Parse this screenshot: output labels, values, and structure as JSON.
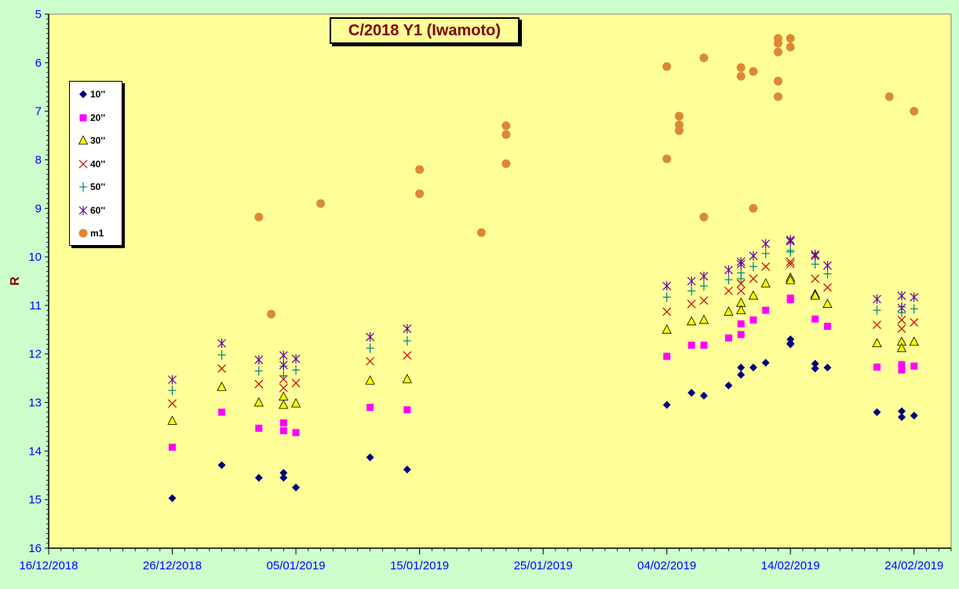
{
  "chart_data": {
    "type": "scatter",
    "title": "C/2018 Y1 (Iwamoto)",
    "xlabel": "",
    "ylabel": "R",
    "xlim": [
      "2018-12-16",
      "2019-02-27"
    ],
    "ylim": [
      16,
      5
    ],
    "y_inverted": true,
    "x_tick_labels": [
      "16/12/2018",
      "26/12/2018",
      "05/01/2019",
      "15/01/2019",
      "25/01/2019",
      "04/02/2019",
      "14/02/2019",
      "24/02/2019"
    ],
    "x_tick_dates": [
      "2018-12-16",
      "2018-12-26",
      "2019-01-05",
      "2019-01-15",
      "2019-01-25",
      "2019-02-04",
      "2019-02-14",
      "2019-02-24"
    ],
    "y_ticks": [
      5,
      6,
      7,
      8,
      9,
      10,
      11,
      12,
      13,
      14,
      15,
      16
    ],
    "grid": false,
    "legend_position": "top-left",
    "series": [
      {
        "name": "10''",
        "marker": "diamond",
        "color": "#000080",
        "points": [
          [
            "2018-12-26",
            14.97
          ],
          [
            "2018-12-30",
            14.29
          ],
          [
            "2019-01-02",
            14.55
          ],
          [
            "2019-01-04",
            14.45
          ],
          [
            "2019-01-04",
            14.55
          ],
          [
            "2019-01-05",
            14.75
          ],
          [
            "2019-01-11",
            14.13
          ],
          [
            "2019-01-14",
            14.38
          ],
          [
            "2019-02-04",
            13.05
          ],
          [
            "2019-02-06",
            12.8
          ],
          [
            "2019-02-07",
            12.86
          ],
          [
            "2019-02-09",
            12.65
          ],
          [
            "2019-02-10",
            12.28
          ],
          [
            "2019-02-10",
            12.43
          ],
          [
            "2019-02-11",
            12.28
          ],
          [
            "2019-02-12",
            12.18
          ],
          [
            "2019-02-14",
            11.7
          ],
          [
            "2019-02-14",
            11.8
          ],
          [
            "2019-02-14",
            11.78
          ],
          [
            "2019-02-16",
            12.3
          ],
          [
            "2019-02-16",
            12.2
          ],
          [
            "2019-02-17",
            12.28
          ],
          [
            "2019-02-21",
            13.2
          ],
          [
            "2019-02-23",
            13.18
          ],
          [
            "2019-02-23",
            13.3
          ],
          [
            "2019-02-24",
            13.27
          ]
        ]
      },
      {
        "name": "20''",
        "marker": "square",
        "color": "#ff00ff",
        "points": [
          [
            "2018-12-26",
            13.92
          ],
          [
            "2018-12-30",
            13.2
          ],
          [
            "2019-01-02",
            13.53
          ],
          [
            "2019-01-04",
            13.42
          ],
          [
            "2019-01-04",
            13.58
          ],
          [
            "2019-01-05",
            13.62
          ],
          [
            "2019-01-11",
            13.1
          ],
          [
            "2019-01-14",
            13.15
          ],
          [
            "2019-02-04",
            12.05
          ],
          [
            "2019-02-06",
            11.82
          ],
          [
            "2019-02-07",
            11.82
          ],
          [
            "2019-02-09",
            11.67
          ],
          [
            "2019-02-10",
            11.38
          ],
          [
            "2019-02-10",
            11.6
          ],
          [
            "2019-02-11",
            11.3
          ],
          [
            "2019-02-12",
            11.1
          ],
          [
            "2019-02-14",
            10.85
          ],
          [
            "2019-02-14",
            10.88
          ],
          [
            "2019-02-16",
            11.28
          ],
          [
            "2019-02-17",
            11.43
          ],
          [
            "2019-02-21",
            12.27
          ],
          [
            "2019-02-23",
            12.22
          ],
          [
            "2019-02-23",
            12.33
          ],
          [
            "2019-02-24",
            12.25
          ]
        ]
      },
      {
        "name": "30''",
        "marker": "triangle",
        "color": "#ffff00",
        "points": [
          [
            "2018-12-26",
            13.38
          ],
          [
            "2018-12-30",
            12.68
          ],
          [
            "2019-01-02",
            13.0
          ],
          [
            "2019-01-04",
            12.88
          ],
          [
            "2019-01-04",
            13.05
          ],
          [
            "2019-01-05",
            13.02
          ],
          [
            "2019-01-11",
            12.55
          ],
          [
            "2019-01-14",
            12.52
          ],
          [
            "2019-02-04",
            11.5
          ],
          [
            "2019-02-06",
            11.33
          ],
          [
            "2019-02-07",
            11.3
          ],
          [
            "2019-02-09",
            11.13
          ],
          [
            "2019-02-10",
            10.95
          ],
          [
            "2019-02-10",
            11.1
          ],
          [
            "2019-02-11",
            10.8
          ],
          [
            "2019-02-12",
            10.55
          ],
          [
            "2019-02-14",
            10.43
          ],
          [
            "2019-02-14",
            10.48
          ],
          [
            "2019-02-16",
            10.77
          ],
          [
            "2019-02-16",
            10.8
          ],
          [
            "2019-02-17",
            10.97
          ],
          [
            "2019-02-21",
            11.78
          ],
          [
            "2019-02-23",
            11.75
          ],
          [
            "2019-02-23",
            11.88
          ],
          [
            "2019-02-24",
            11.75
          ]
        ]
      },
      {
        "name": "40''",
        "marker": "x",
        "color": "#cc0000",
        "points": [
          [
            "2018-12-26",
            13.02
          ],
          [
            "2018-12-30",
            12.3
          ],
          [
            "2019-01-02",
            12.62
          ],
          [
            "2019-01-04",
            12.52
          ],
          [
            "2019-01-04",
            12.7
          ],
          [
            "2019-01-05",
            12.6
          ],
          [
            "2019-01-11",
            12.15
          ],
          [
            "2019-01-14",
            12.03
          ],
          [
            "2019-02-04",
            11.13
          ],
          [
            "2019-02-06",
            10.97
          ],
          [
            "2019-02-07",
            10.9
          ],
          [
            "2019-02-09",
            10.7
          ],
          [
            "2019-02-10",
            10.55
          ],
          [
            "2019-02-10",
            10.7
          ],
          [
            "2019-02-11",
            10.45
          ],
          [
            "2019-02-12",
            10.2
          ],
          [
            "2019-02-14",
            10.1
          ],
          [
            "2019-02-14",
            10.15
          ],
          [
            "2019-02-16",
            10.45
          ],
          [
            "2019-02-17",
            10.63
          ],
          [
            "2019-02-21",
            11.4
          ],
          [
            "2019-02-23",
            11.3
          ],
          [
            "2019-02-23",
            11.48
          ],
          [
            "2019-02-24",
            11.35
          ]
        ]
      },
      {
        "name": "50''",
        "marker": "plus",
        "color": "#008080",
        "points": [
          [
            "2018-12-26",
            12.75
          ],
          [
            "2018-12-30",
            12.02
          ],
          [
            "2019-01-02",
            12.35
          ],
          [
            "2019-01-04",
            12.25
          ],
          [
            "2019-01-04",
            12.45
          ],
          [
            "2019-01-05",
            12.33
          ],
          [
            "2019-01-11",
            11.88
          ],
          [
            "2019-01-14",
            11.73
          ],
          [
            "2019-02-04",
            10.83
          ],
          [
            "2019-02-06",
            10.7
          ],
          [
            "2019-02-07",
            10.6
          ],
          [
            "2019-02-09",
            10.47
          ],
          [
            "2019-02-10",
            10.33
          ],
          [
            "2019-02-10",
            10.45
          ],
          [
            "2019-02-11",
            10.2
          ],
          [
            "2019-02-12",
            9.93
          ],
          [
            "2019-02-14",
            9.87
          ],
          [
            "2019-02-14",
            9.9
          ],
          [
            "2019-02-16",
            10.15
          ],
          [
            "2019-02-17",
            10.35
          ],
          [
            "2019-02-21",
            11.1
          ],
          [
            "2019-02-23",
            11.03
          ],
          [
            "2019-02-23",
            11.15
          ],
          [
            "2019-02-24",
            11.07
          ]
        ]
      },
      {
        "name": "60''",
        "marker": "star",
        "color": "#660099",
        "points": [
          [
            "2018-12-26",
            12.53
          ],
          [
            "2018-12-30",
            11.78
          ],
          [
            "2019-01-02",
            12.12
          ],
          [
            "2019-01-04",
            12.03
          ],
          [
            "2019-01-04",
            12.23
          ],
          [
            "2019-01-05",
            12.1
          ],
          [
            "2019-01-11",
            11.65
          ],
          [
            "2019-01-14",
            11.48
          ],
          [
            "2019-02-04",
            10.6
          ],
          [
            "2019-02-06",
            10.5
          ],
          [
            "2019-02-07",
            10.4
          ],
          [
            "2019-02-09",
            10.27
          ],
          [
            "2019-02-10",
            10.1
          ],
          [
            "2019-02-10",
            10.15
          ],
          [
            "2019-02-11",
            9.98
          ],
          [
            "2019-02-12",
            9.73
          ],
          [
            "2019-02-14",
            9.65
          ],
          [
            "2019-02-14",
            9.68
          ],
          [
            "2019-02-16",
            9.95
          ],
          [
            "2019-02-16",
            9.98
          ],
          [
            "2019-02-17",
            10.18
          ],
          [
            "2019-02-21",
            10.87
          ],
          [
            "2019-02-23",
            10.8
          ],
          [
            "2019-02-23",
            11.05
          ],
          [
            "2019-02-24",
            10.83
          ]
        ]
      },
      {
        "name": "m1",
        "marker": "circle",
        "color": "#dd8833",
        "points": [
          [
            "2019-01-02",
            9.18
          ],
          [
            "2019-01-03",
            11.18
          ],
          [
            "2019-01-07",
            8.9
          ],
          [
            "2019-01-15",
            8.2
          ],
          [
            "2019-01-15",
            8.7
          ],
          [
            "2019-01-20",
            9.5
          ],
          [
            "2019-01-22",
            7.3
          ],
          [
            "2019-01-22",
            7.48
          ],
          [
            "2019-01-22",
            8.08
          ],
          [
            "2019-02-04",
            6.08
          ],
          [
            "2019-02-04",
            7.98
          ],
          [
            "2019-02-05",
            7.1
          ],
          [
            "2019-02-05",
            7.28
          ],
          [
            "2019-02-05",
            7.4
          ],
          [
            "2019-02-07",
            5.9
          ],
          [
            "2019-02-07",
            9.18
          ],
          [
            "2019-02-10",
            6.1
          ],
          [
            "2019-02-10",
            6.28
          ],
          [
            "2019-02-11",
            6.18
          ],
          [
            "2019-02-11",
            9.0
          ],
          [
            "2019-02-13",
            5.5
          ],
          [
            "2019-02-13",
            5.6
          ],
          [
            "2019-02-13",
            5.78
          ],
          [
            "2019-02-13",
            6.38
          ],
          [
            "2019-02-13",
            6.7
          ],
          [
            "2019-02-14",
            5.5
          ],
          [
            "2019-02-14",
            5.68
          ],
          [
            "2019-02-22",
            6.7
          ],
          [
            "2019-02-24",
            7.0
          ]
        ]
      }
    ]
  }
}
